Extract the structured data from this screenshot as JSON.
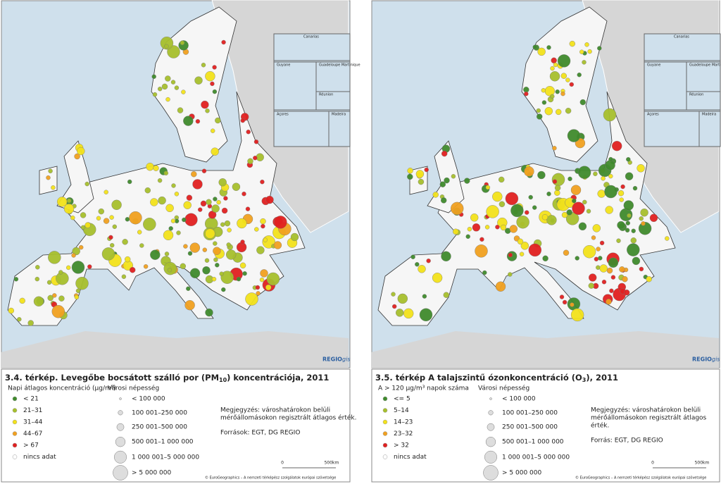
{
  "maps": [
    {
      "title_main": "3.4. térkép. Levegőbe bocsátott szálló por (PM",
      "title_sub": "10",
      "title_end": ") koncentrációja, 2011",
      "credit": "REGIO",
      "credit_gis": "gis",
      "insets": [
        "Canarias",
        "Guyane",
        "Guadeloupe Martinique",
        "Réunion",
        "Açores",
        "Madeira"
      ],
      "legend_title": "Napi átlagos koncentráció (µg/m³)",
      "classes": [
        {
          "label": "< 21",
          "color": "#3f8a2c"
        },
        {
          "label": "21–31",
          "color": "#a6bf2c"
        },
        {
          "label": "31–44",
          "color": "#f2e21a"
        },
        {
          "label": "44–67",
          "color": "#f0a020"
        },
        {
          "label": "> 67",
          "color": "#e02020"
        },
        {
          "label": "nincs adat",
          "color": "#ffffff"
        }
      ],
      "size_title": "Városi népesség",
      "sizes": [
        "< 100 000",
        "100 001–250 000",
        "250 001–500 000",
        "500 001–1 000 000",
        "1 000 001–5 000 000",
        "> 5 000 000"
      ],
      "note": [
        "Megjegyzés: városhatárokon belüli",
        "mérőállomásokon regisztrált átlagos érték."
      ],
      "sources": "Források: EGT, DG REGIO",
      "scale_labels": [
        "0",
        "500km"
      ],
      "copyright": "© EuroGeographics – A nemzeti térképész szolgálatok európai szövetsége"
    },
    {
      "title_main": "3.5. térkép A talajszintű ózonkoncentráció (O",
      "title_sub": "3",
      "title_end": "), 2011",
      "credit": "REGIO",
      "credit_gis": "gis",
      "insets": [
        "Canarias",
        "Guyane",
        "Guadeloupe Martinique",
        "Réunion",
        "Açores",
        "Madeira"
      ],
      "legend_title": "A > 120 µg/m³ napok száma",
      "classes": [
        {
          "label": "<= 5",
          "color": "#3f8a2c"
        },
        {
          "label": "5–14",
          "color": "#a6bf2c"
        },
        {
          "label": "14–23",
          "color": "#f2e21a"
        },
        {
          "label": "23–32",
          "color": "#f0a020"
        },
        {
          "label": "> 32",
          "color": "#e02020"
        },
        {
          "label": "nincs adat",
          "color": "#ffffff"
        }
      ],
      "size_title": "Városi népesség",
      "sizes": [
        "< 100 000",
        "100 001–250 000",
        "250 001–500 000",
        "500 001–1 000 000",
        "1 000 001–5 000 000",
        "> 5 000 000"
      ],
      "note": [
        "Megjegyzés: városhatárokon belüli",
        "mérőállomásokon regisztrált átlagos",
        "érték."
      ],
      "sources": "Forrás: EGT, DG REGIO",
      "scale_labels": [
        "0",
        "500km"
      ],
      "copyright": "© EuroGeographics – A nemzeti térképész szolgálatok európai szövetsége"
    }
  ]
}
